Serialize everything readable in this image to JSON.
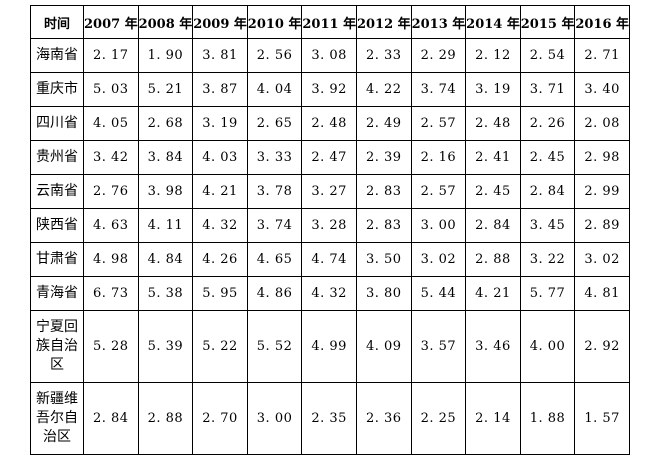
{
  "table": {
    "corner": "时间",
    "years": [
      "2007 年",
      "2008 年",
      "2009 年",
      "2010 年",
      "2011 年",
      "2012 年",
      "2013 年",
      "2014 年",
      "2015 年",
      "2016 年"
    ],
    "rows": [
      {
        "region": "海南省",
        "values": [
          "2. 17",
          "1. 90",
          "3. 81",
          "2. 56",
          "3. 08",
          "2. 33",
          "2. 29",
          "2. 12",
          "2. 54",
          "2. 71"
        ]
      },
      {
        "region": "重庆市",
        "values": [
          "5. 03",
          "5. 21",
          "3. 87",
          "4. 04",
          "3. 92",
          "4. 22",
          "3. 74",
          "3. 19",
          "3. 71",
          "3. 40"
        ]
      },
      {
        "region": "四川省",
        "values": [
          "4. 05",
          "2. 68",
          "3. 19",
          "2. 65",
          "2. 48",
          "2. 49",
          "2. 57",
          "2. 48",
          "2. 26",
          "2. 08"
        ]
      },
      {
        "region": "贵州省",
        "values": [
          "3. 42",
          "3. 84",
          "4. 03",
          "3. 33",
          "2. 47",
          "2. 39",
          "2. 16",
          "2. 41",
          "2. 45",
          "2. 98"
        ]
      },
      {
        "region": "云南省",
        "values": [
          "2. 76",
          "3. 98",
          "4. 21",
          "3. 78",
          "3. 27",
          "2. 83",
          "2. 57",
          "2. 45",
          "2. 84",
          "2. 99"
        ]
      },
      {
        "region": "陕西省",
        "values": [
          "4. 63",
          "4. 11",
          "4. 32",
          "3. 74",
          "3. 28",
          "2. 83",
          "3. 00",
          "2. 84",
          "3. 45",
          "2. 89"
        ]
      },
      {
        "region": "甘肃省",
        "values": [
          "4. 98",
          "4. 84",
          "4. 26",
          "4. 65",
          "4. 74",
          "3. 50",
          "3. 02",
          "2. 88",
          "3. 22",
          "3. 02"
        ]
      },
      {
        "region": "青海省",
        "values": [
          "6. 73",
          "5. 38",
          "5. 95",
          "4. 86",
          "4. 32",
          "3. 80",
          "5. 44",
          "4. 21",
          "5. 77",
          "4. 81"
        ]
      },
      {
        "region": "宁夏回族自治区",
        "values": [
          "5. 28",
          "5. 39",
          "5. 22",
          "5. 52",
          "4. 99",
          "4. 09",
          "3. 57",
          "3. 46",
          "4. 00",
          "2. 92"
        ]
      },
      {
        "region": "新疆维吾尔自治区",
        "values": [
          "2. 84",
          "2. 88",
          "2. 70",
          "3. 00",
          "2. 35",
          "2. 36",
          "2. 25",
          "2. 14",
          "1. 88",
          "1. 57"
        ]
      }
    ]
  }
}
